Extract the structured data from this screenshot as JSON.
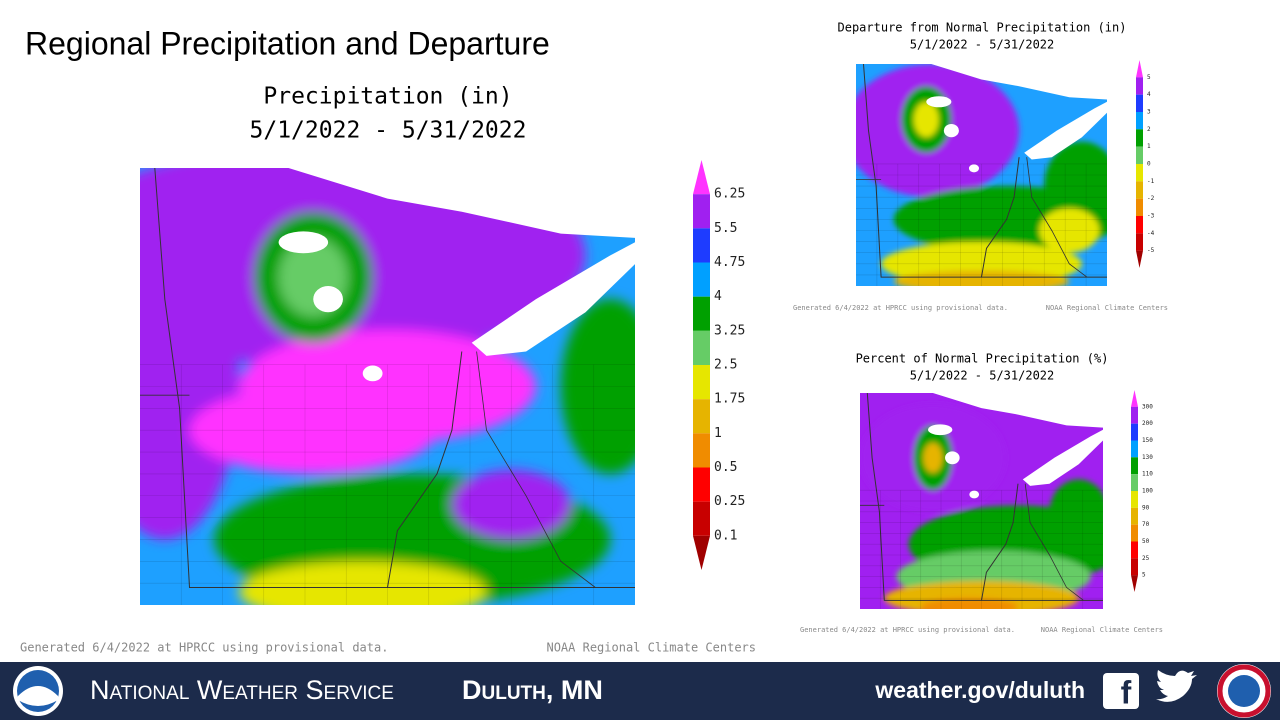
{
  "title": "Regional Precipitation and Departure",
  "main_map": {
    "title": "Precipitation (in)",
    "dates": "5/1/2022 - 5/31/2022",
    "legend": [
      "6.25",
      "5.5",
      "4.75",
      "4",
      "3.25",
      "2.5",
      "1.75",
      "1",
      "0.5",
      "0.25",
      "0.1"
    ],
    "footer_left": "Generated 6/4/2022 at HPRCC using provisional data.",
    "footer_right": "NOAA Regional Climate Centers"
  },
  "departure_map": {
    "title": "Departure from Normal Precipitation (in)",
    "dates": "5/1/2022 - 5/31/2022",
    "legend": [
      "5",
      "4",
      "3",
      "2",
      "1",
      "0",
      "-1",
      "-2",
      "-3",
      "-4",
      "-5"
    ],
    "footer_left": "Generated 6/4/2022 at HPRCC using provisional data.",
    "footer_right": "NOAA Regional Climate Centers"
  },
  "percent_map": {
    "title": "Percent of Normal Precipitation (%)",
    "dates": "5/1/2022 - 5/31/2022",
    "legend": [
      "300",
      "200",
      "150",
      "130",
      "110",
      "100",
      "90",
      "70",
      "50",
      "25",
      "5"
    ],
    "footer_left": "Generated 6/4/2022 at HPRCC using provisional data.",
    "footer_right": "NOAA Regional Climate Centers"
  },
  "banner": {
    "agency": "National Weather Service",
    "office": "Duluth, MN",
    "website": "weather.gov/duluth"
  }
}
